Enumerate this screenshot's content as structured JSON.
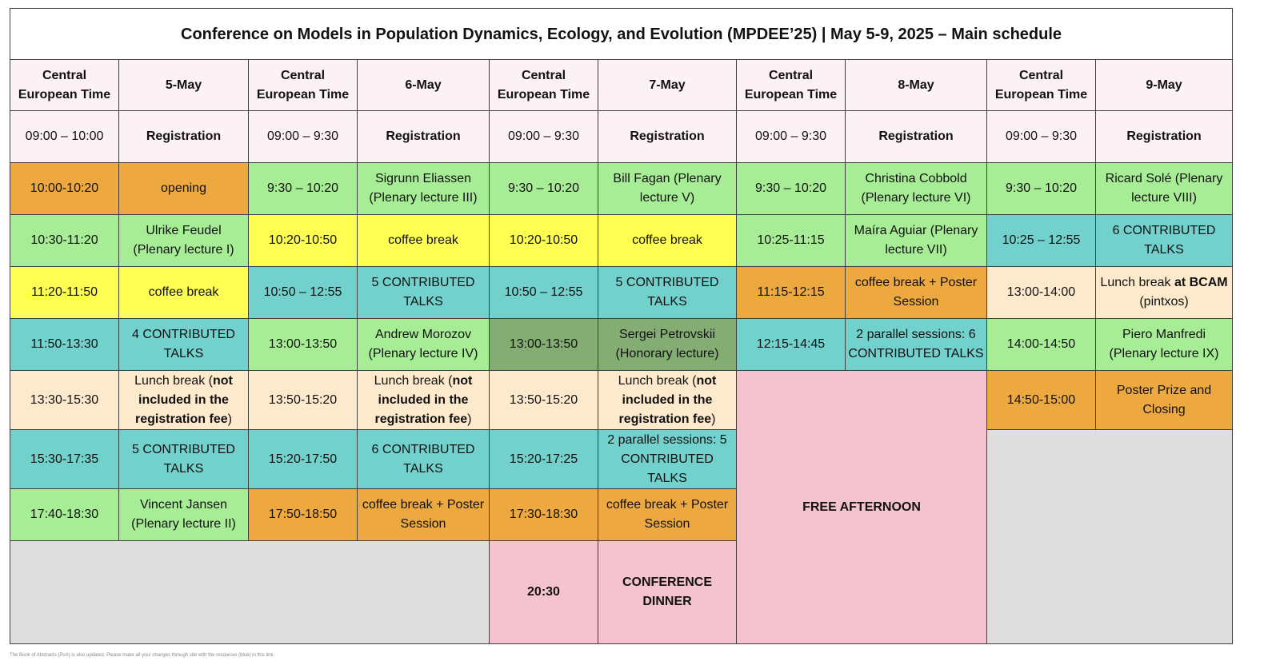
{
  "title": "Conference on Models in Population Dynamics, Ecology, and Evolution (MPDEE’25) | May 5-9, 2025 – Main schedule",
  "time_header": "Central European Time",
  "days": [
    "5-May",
    "6-May",
    "7-May",
    "8-May",
    "9-May"
  ],
  "registration_label": "Registration",
  "colors": {
    "orange": "#eda83f",
    "green": "#a7ed95",
    "yellow": "#fdfd52",
    "teal": "#72d1cc",
    "cream": "#fdeacd",
    "dark_green": "#83ad73",
    "pink": "#f4c3cf",
    "grey": "#dedede",
    "header_tint": "#fcf1f5",
    "time_header_red": "#c0282d",
    "highlight_blue": "#1212ee"
  },
  "may5": {
    "times": [
      "09:00 – 10:00",
      "10:00-10:20",
      "10:30-11:20",
      "11:20-11:50",
      "11:50-13:30",
      "13:30-15:30",
      "15:30-17:35",
      "17:40-18:30"
    ],
    "opening": "opening",
    "plenary1": "Ulrike Feudel (Plenary lecture I)",
    "coffee": "coffee break",
    "talks4": "4 CONTRIBUTED TALKS",
    "lunch_pre": "Lunch break (",
    "lunch_bold": "not included in the registration fee",
    "lunch_post": ")",
    "talks5": "5 CONTRIBUTED TALKS",
    "plenary2": "Vincent Jansen (Plenary lecture II)"
  },
  "may6": {
    "times": [
      "09:00 – 9:30",
      "9:30 – 10:20",
      "10:20-10:50",
      "10:50 – 12:55",
      "13:00-13:50",
      "13:50-15:20",
      "15:20-17:50",
      "17:50-18:50"
    ],
    "plenary3": "Sigrunn Eliassen (Plenary lecture III)",
    "coffee": "coffee break",
    "talks5": "5 CONTRIBUTED TALKS",
    "plenary4": "Andrew Morozov (Plenary lecture IV)",
    "lunch_pre": "Lunch break (",
    "lunch_bold": "not included in the registration fee",
    "lunch_post": ")",
    "talks6": "6 CONTRIBUTED TALKS",
    "coffee_poster": "coffee break + Poster Session"
  },
  "may7": {
    "times": [
      "09:00 – 9:30",
      "9:30 – 10:20",
      "10:20-10:50",
      "10:50 – 12:55",
      "13:00-13:50",
      "13:50-15:20",
      "15:20-17:25",
      "17:30-18:30",
      "20:30"
    ],
    "plenary5": "Bill Fagan (Plenary lecture V)",
    "coffee": "coffee break",
    "talks5": "5 CONTRIBUTED TALKS",
    "honorary": "Sergei Petrovskii (Honorary lecture)",
    "lunch_pre": "Lunch break (",
    "lunch_bold": "not included in the registration fee",
    "lunch_post": ")",
    "parallel": "2 parallel sessions: 5 CONTRIBUTED TALKS",
    "coffee_poster": "coffee break + Poster Session",
    "dinner": "CONFERENCE DINNER"
  },
  "may8": {
    "times": [
      "09:00 – 9:30",
      "9:30 – 10:20",
      "10:25-11:15",
      "11:15-12:15",
      "12:15-14:45"
    ],
    "plenary6": "Christina Cobbold (Plenary lecture VI)",
    "plenary7": "Maíra Aguiar (Plenary lecture VII)",
    "coffee_poster": "coffee break + Poster Session",
    "parallel": "2 parallel sessions: 6 CONTRIBUTED TALKS",
    "free": "FREE AFTERNOON"
  },
  "may9": {
    "times": [
      "09:00 – 9:30",
      "9:30 – 10:20",
      "10:25 – 12:55",
      "13:00-14:00",
      "14:00-14:50",
      "14:50-15:00"
    ],
    "plenary8": "Ricard Solé (Plenary lecture VIII)",
    "talks6": "6 CONTRIBUTED TALKS",
    "lunch_pre": "Lunch break ",
    "lunch_bold": "at BCAM",
    "lunch_post": " (pintxos)",
    "plenary9": "Piero Manfredi (Plenary lecture IX)",
    "closing": "Poster Prize and Closing"
  },
  "footnote": "The Book of Abstracts (PoA) is also updated. Please make all your changes through site with the resources (blue) in this link."
}
